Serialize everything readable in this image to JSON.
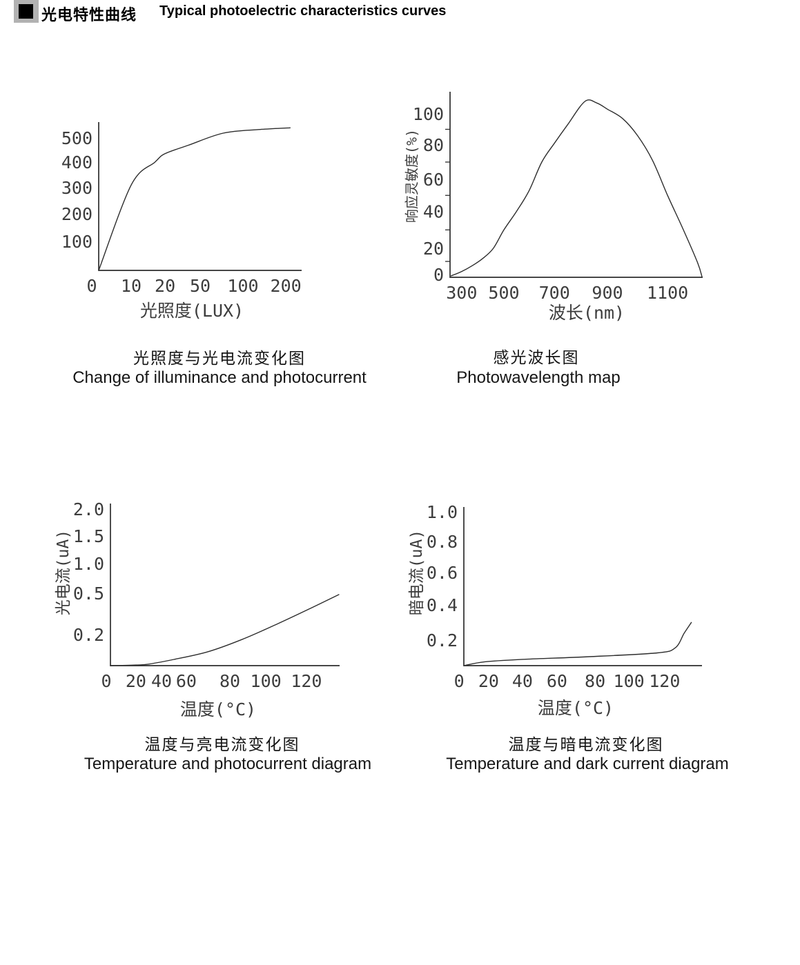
{
  "header": {
    "title_zh": "光电特性曲线",
    "title_en": "Typical photoelectric characteristics curves"
  },
  "colors": {
    "stroke": "#2d2d2d",
    "tick_text": "#3d3d3d",
    "marker_gray": "#b2b2b2",
    "marker_black": "#000000"
  },
  "chart_data": [
    {
      "id": "illuminance",
      "type": "line",
      "caption_zh": "光照度与光电流变化图",
      "caption_en": "Change of illuminance and photocurrent",
      "xlabel": "光照度(LUX)",
      "ylabel": "",
      "xlim": [
        0,
        240
      ],
      "ylim": [
        0,
        560
      ],
      "grid": false,
      "smooth": true,
      "x_scale": [
        [
          0,
          0
        ],
        [
          10,
          0.16
        ],
        [
          20,
          0.327
        ],
        [
          50,
          0.5
        ],
        [
          100,
          0.711
        ],
        [
          200,
          0.922
        ]
      ],
      "y_scale": [
        [
          0,
          0
        ],
        [
          100,
          0.195
        ],
        [
          200,
          0.381
        ],
        [
          300,
          0.558
        ],
        [
          400,
          0.73
        ],
        [
          500,
          0.893
        ]
      ],
      "x_labels": [
        {
          "text": "0",
          "f": -0.034
        },
        {
          "text": "10",
          "f": 0.16
        },
        {
          "text": "20",
          "f": 0.327
        },
        {
          "text": "50",
          "f": 0.5
        },
        {
          "text": "100",
          "f": 0.711
        },
        {
          "text": "200",
          "f": 0.922
        }
      ],
      "y_labels": [
        {
          "text": "100",
          "f": 0.195
        },
        {
          "text": "200",
          "f": 0.381
        },
        {
          "text": "300",
          "f": 0.558
        },
        {
          "text": "400",
          "f": 0.73
        },
        {
          "text": "500",
          "f": 0.893
        }
      ],
      "curve": [
        [
          0,
          0
        ],
        [
          10,
          310
        ],
        [
          17,
          400
        ],
        [
          20,
          435
        ],
        [
          40,
          470
        ],
        [
          77,
          520
        ],
        [
          140,
          535
        ],
        [
          210,
          542
        ]
      ]
    },
    {
      "id": "spectral",
      "type": "line",
      "caption_zh": "感光波长图",
      "caption_en": "Photowavelength map",
      "xlabel": "波长(nm)",
      "ylabel": "响应灵敏度(%)",
      "xlim": [
        250,
        1250
      ],
      "ylim": [
        0,
        113
      ],
      "grid": false,
      "smooth": true,
      "x_scale": [
        [
          300,
          0.046
        ],
        [
          500,
          0.213
        ],
        [
          700,
          0.413
        ],
        [
          900,
          0.623
        ],
        [
          1100,
          0.861
        ]
      ],
      "y_scale": [
        [
          0,
          0
        ],
        [
          20,
          0.156
        ],
        [
          40,
          0.355
        ],
        [
          60,
          0.528
        ],
        [
          80,
          0.714
        ],
        [
          100,
          0.881
        ]
      ],
      "x_labels": [
        {
          "text": "300",
          "f": 0.046
        },
        {
          "text": "500",
          "f": 0.213
        },
        {
          "text": "700",
          "f": 0.413
        },
        {
          "text": "900",
          "f": 0.623
        },
        {
          "text": "1100",
          "f": 0.861
        }
      ],
      "y_labels": [
        {
          "text": "0",
          "f": 0.015
        },
        {
          "text": "20",
          "f": 0.156
        },
        {
          "text": "40",
          "f": 0.355
        },
        {
          "text": "60",
          "f": 0.528
        },
        {
          "text": "80",
          "f": 0.714
        },
        {
          "text": "100",
          "f": 0.881
        }
      ],
      "y_minor_f": [
        0.0855,
        0.2555,
        0.4415,
        0.621,
        0.7975
      ],
      "curve": [
        [
          250,
          1
        ],
        [
          300,
          4
        ],
        [
          350,
          8
        ],
        [
          400,
          13
        ],
        [
          450,
          20
        ],
        [
          500,
          30
        ],
        [
          550,
          40
        ],
        [
          600,
          53
        ],
        [
          650,
          70
        ],
        [
          700,
          81
        ],
        [
          750,
          93
        ],
        [
          815,
          108
        ],
        [
          860,
          107
        ],
        [
          900,
          103
        ],
        [
          950,
          97
        ],
        [
          1000,
          86
        ],
        [
          1050,
          71
        ],
        [
          1100,
          50
        ],
        [
          1150,
          31
        ],
        [
          1200,
          10
        ],
        [
          1215,
          0
        ]
      ]
    },
    {
      "id": "photocurrent",
      "type": "line",
      "caption_zh": "温度与亮电流变化图",
      "caption_en": "Temperature and photocurrent diagram",
      "xlabel": "温度(°C)",
      "ylabel": "光电流(uA)",
      "xlim": [
        0,
        140
      ],
      "ylim": [
        0,
        2.0
      ],
      "grid": false,
      "smooth": true,
      "x_scale": [
        [
          0,
          0
        ],
        [
          20,
          0.111
        ],
        [
          40,
          0.223
        ],
        [
          60,
          0.331
        ],
        [
          80,
          0.521
        ],
        [
          100,
          0.678
        ],
        [
          120,
          0.855
        ]
      ],
      "y_scale": [
        [
          0,
          0
        ],
        [
          0.2,
          0.191
        ],
        [
          0.5,
          0.447
        ],
        [
          1.0,
          0.63
        ],
        [
          1.5,
          0.8
        ],
        [
          2.0,
          0.966
        ]
      ],
      "x_labels": [
        {
          "text": "0",
          "f": -0.018
        },
        {
          "text": "20",
          "f": 0.111
        },
        {
          "text": "40",
          "f": 0.223
        },
        {
          "text": "60",
          "f": 0.331
        },
        {
          "text": "80",
          "f": 0.521
        },
        {
          "text": "100",
          "f": 0.678
        },
        {
          "text": "120",
          "f": 0.855
        }
      ],
      "y_labels": [
        {
          "text": "0.2",
          "f": 0.191
        },
        {
          "text": "0.5",
          "f": 0.447
        },
        {
          "text": "1.0",
          "f": 0.63
        },
        {
          "text": "1.5",
          "f": 0.8
        },
        {
          "text": "2.0",
          "f": 0.966
        }
      ],
      "curve": [
        [
          0,
          0
        ],
        [
          20,
          0.004
        ],
        [
          30,
          0.01
        ],
        [
          50,
          0.04
        ],
        [
          70,
          0.09
        ],
        [
          87,
          0.17
        ],
        [
          106,
          0.28
        ],
        [
          122,
          0.39
        ],
        [
          136,
          0.49
        ]
      ]
    },
    {
      "id": "dark",
      "type": "line",
      "caption_zh": "温度与暗电流变化图",
      "caption_en": "Temperature and dark current diagram",
      "xlabel": "温度(°C)",
      "ylabel": "暗电流(uA)",
      "xlim": [
        0,
        140
      ],
      "ylim": [
        0,
        1.0
      ],
      "grid": false,
      "smooth": true,
      "x_scale": [
        [
          0,
          0
        ],
        [
          20,
          0.104
        ],
        [
          40,
          0.246
        ],
        [
          60,
          0.391
        ],
        [
          80,
          0.551
        ],
        [
          100,
          0.693
        ],
        [
          120,
          0.843
        ]
      ],
      "y_scale": [
        [
          0,
          0
        ],
        [
          0.2,
          0.161
        ],
        [
          0.4,
          0.383
        ],
        [
          0.6,
          0.587
        ],
        [
          0.8,
          0.783
        ],
        [
          1.0,
          0.97
        ]
      ],
      "x_labels": [
        {
          "text": "0",
          "f": -0.02
        },
        {
          "text": "20",
          "f": 0.104
        },
        {
          "text": "40",
          "f": 0.246
        },
        {
          "text": "60",
          "f": 0.391
        },
        {
          "text": "80",
          "f": 0.551
        },
        {
          "text": "100",
          "f": 0.693
        },
        {
          "text": "120",
          "f": 0.843
        }
      ],
      "y_labels": [
        {
          "text": "0.2",
          "f": 0.161
        },
        {
          "text": "0.4",
          "f": 0.383
        },
        {
          "text": "0.6",
          "f": 0.587
        },
        {
          "text": "0.8",
          "f": 0.783
        },
        {
          "text": "1.0",
          "f": 0.97
        }
      ],
      "curve": [
        [
          0,
          0
        ],
        [
          17,
          0.03
        ],
        [
          42,
          0.05
        ],
        [
          77,
          0.07
        ],
        [
          116,
          0.1
        ],
        [
          126,
          0.14
        ],
        [
          131,
          0.24
        ],
        [
          135,
          0.3
        ]
      ]
    }
  ]
}
